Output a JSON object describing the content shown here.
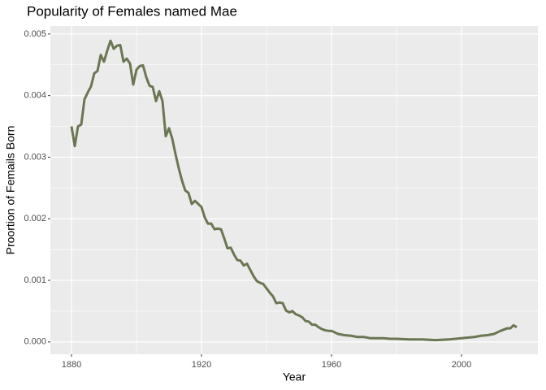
{
  "chart_data": {
    "type": "line",
    "title": "Popularity of Females named Mae",
    "x_label": "Year",
    "y_label": "Proortion of Femails Born",
    "x": [
      1880,
      1881,
      1882,
      1883,
      1884,
      1885,
      1886,
      1887,
      1888,
      1889,
      1890,
      1891,
      1892,
      1893,
      1894,
      1895,
      1896,
      1897,
      1898,
      1899,
      1900,
      1901,
      1902,
      1903,
      1904,
      1905,
      1906,
      1907,
      1908,
      1909,
      1910,
      1911,
      1912,
      1913,
      1914,
      1915,
      1916,
      1917,
      1918,
      1919,
      1920,
      1921,
      1922,
      1923,
      1924,
      1925,
      1926,
      1927,
      1928,
      1929,
      1930,
      1931,
      1932,
      1933,
      1934,
      1935,
      1936,
      1937,
      1938,
      1939,
      1940,
      1941,
      1942,
      1943,
      1944,
      1945,
      1946,
      1947,
      1948,
      1949,
      1950,
      1951,
      1952,
      1953,
      1954,
      1955,
      1956,
      1957,
      1958,
      1959,
      1960,
      1962,
      1964,
      1966,
      1968,
      1970,
      1972,
      1974,
      1976,
      1978,
      1980,
      1984,
      1988,
      1992,
      1996,
      2000,
      2002,
      2004,
      2006,
      2008,
      2010,
      2012,
      2014,
      2015,
      2016,
      2017
    ],
    "series": [
      {
        "name": "Mae",
        "color": "#6b7653",
        "values": [
          0.0035,
          0.00318,
          0.0035,
          0.00353,
          0.00394,
          0.00405,
          0.00415,
          0.00436,
          0.0044,
          0.00466,
          0.00455,
          0.00473,
          0.00489,
          0.00476,
          0.00481,
          0.00482,
          0.00455,
          0.0046,
          0.00452,
          0.00418,
          0.00442,
          0.00448,
          0.00449,
          0.0043,
          0.00416,
          0.00414,
          0.00391,
          0.00407,
          0.00391,
          0.00334,
          0.00347,
          0.0033,
          0.00305,
          0.00282,
          0.00262,
          0.00246,
          0.00242,
          0.00224,
          0.00229,
          0.00224,
          0.00219,
          0.00202,
          0.00192,
          0.00192,
          0.00183,
          0.00184,
          0.00183,
          0.00168,
          0.00152,
          0.00153,
          0.00142,
          0.00133,
          0.00132,
          0.00124,
          0.00127,
          0.00117,
          0.00107,
          0.00099,
          0.00096,
          0.00094,
          0.00087,
          0.0008,
          0.00074,
          0.00063,
          0.00064,
          0.00063,
          0.00051,
          0.00048,
          0.0005,
          0.00045,
          0.00043,
          0.0004,
          0.00034,
          0.00033,
          0.00028,
          0.00028,
          0.00024,
          0.00021,
          0.00019,
          0.00018,
          0.00018,
          0.00013,
          0.00011,
          0.0001,
          8e-05,
          8e-05,
          6e-05,
          6e-05,
          6e-05,
          5e-05,
          5e-05,
          4e-05,
          4e-05,
          3e-05,
          4e-05,
          6e-05,
          7e-05,
          8e-05,
          0.0001,
          0.00011,
          0.00013,
          0.00018,
          0.00022,
          0.00022,
          0.00027,
          0.00024
        ]
      }
    ],
    "xlim": [
      1873.5,
      2023.5
    ],
    "xticks": [
      1880,
      1920,
      1960,
      2000
    ],
    "ylim": [
      -0.0002,
      0.00513
    ],
    "yticks": [
      {
        "value": 0,
        "label": "0.000"
      },
      {
        "value": 0.001,
        "label": "0.001"
      },
      {
        "value": 0.002,
        "label": "0.002"
      },
      {
        "value": 0.003,
        "label": "0.003"
      },
      {
        "value": 0.004,
        "label": "0.004"
      },
      {
        "value": 0.005,
        "label": "0.005"
      }
    ],
    "grid": true
  }
}
